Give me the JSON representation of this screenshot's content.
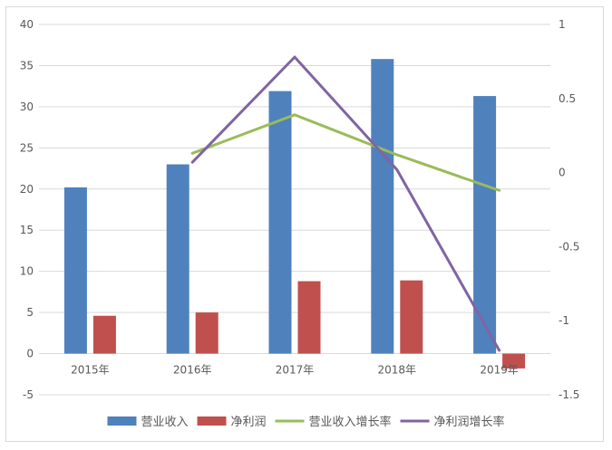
{
  "chart_data": {
    "type": "bar",
    "categories": [
      "2015年",
      "2016年",
      "2017年",
      "2018年",
      "2019年"
    ],
    "series": [
      {
        "name": "营业收入",
        "type": "bar",
        "axis": "left",
        "color": "#4f81bd",
        "values": [
          20.2,
          23.0,
          31.9,
          35.8,
          31.3
        ]
      },
      {
        "name": "净利润",
        "type": "bar",
        "axis": "left",
        "color": "#c0504d",
        "values": [
          4.6,
          5.0,
          8.8,
          8.9,
          -1.8
        ]
      },
      {
        "name": "营业收入增长率",
        "type": "line",
        "axis": "right",
        "color": "#9bbb59",
        "values": [
          null,
          0.13,
          0.39,
          0.12,
          -0.12
        ]
      },
      {
        "name": "净利润增长率",
        "type": "line",
        "axis": "right",
        "color": "#8064a2",
        "values": [
          null,
          0.07,
          0.78,
          0.02,
          -1.2
        ]
      }
    ],
    "y_left": {
      "min": -5,
      "max": 40,
      "step": 5,
      "ticks": [
        "-5",
        "0",
        "5",
        "10",
        "15",
        "20",
        "25",
        "30",
        "35",
        "40"
      ]
    },
    "y_right": {
      "min": -1.5,
      "max": 1,
      "step": 0.5,
      "ticks": [
        "-1.5",
        "-1",
        "-0.5",
        "0",
        "0.5",
        "1"
      ]
    },
    "grid": true,
    "legend_position": "bottom"
  }
}
